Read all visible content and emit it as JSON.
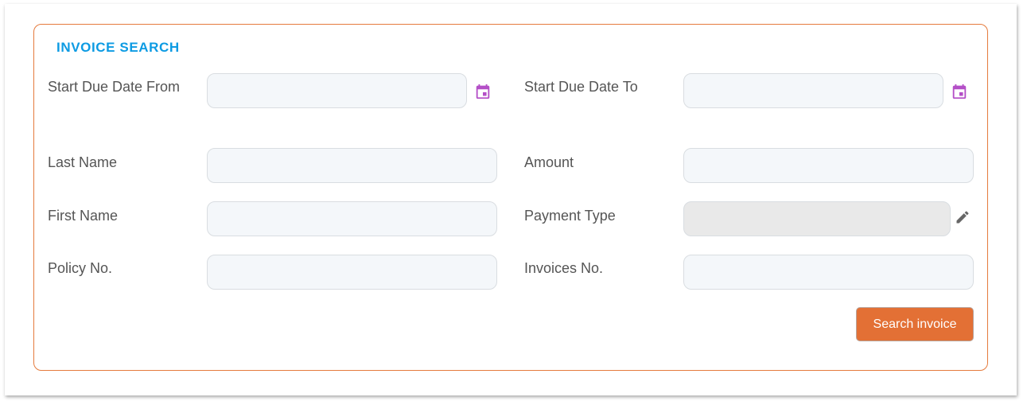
{
  "form": {
    "title": "INVOICE SEARCH",
    "fields": {
      "start_due_date_from": {
        "label": "Start Due Date From",
        "value": ""
      },
      "start_due_date_to": {
        "label": "Start Due Date To",
        "value": ""
      },
      "last_name": {
        "label": "Last Name",
        "value": ""
      },
      "amount": {
        "label": "Amount",
        "value": ""
      },
      "first_name": {
        "label": "First Name",
        "value": ""
      },
      "payment_type": {
        "label": "Payment Type",
        "value": ""
      },
      "policy_no": {
        "label": "Policy No.",
        "value": ""
      },
      "invoices_no": {
        "label": "Invoices No.",
        "value": ""
      }
    },
    "search_button": "Search invoice"
  },
  "icons": {
    "date": "calendar-icon",
    "edit": "pencil-icon"
  },
  "colors": {
    "accent": "#e37035",
    "title": "#0d9be3",
    "calendar": "#b44fc7",
    "border": "#e57b3d"
  }
}
